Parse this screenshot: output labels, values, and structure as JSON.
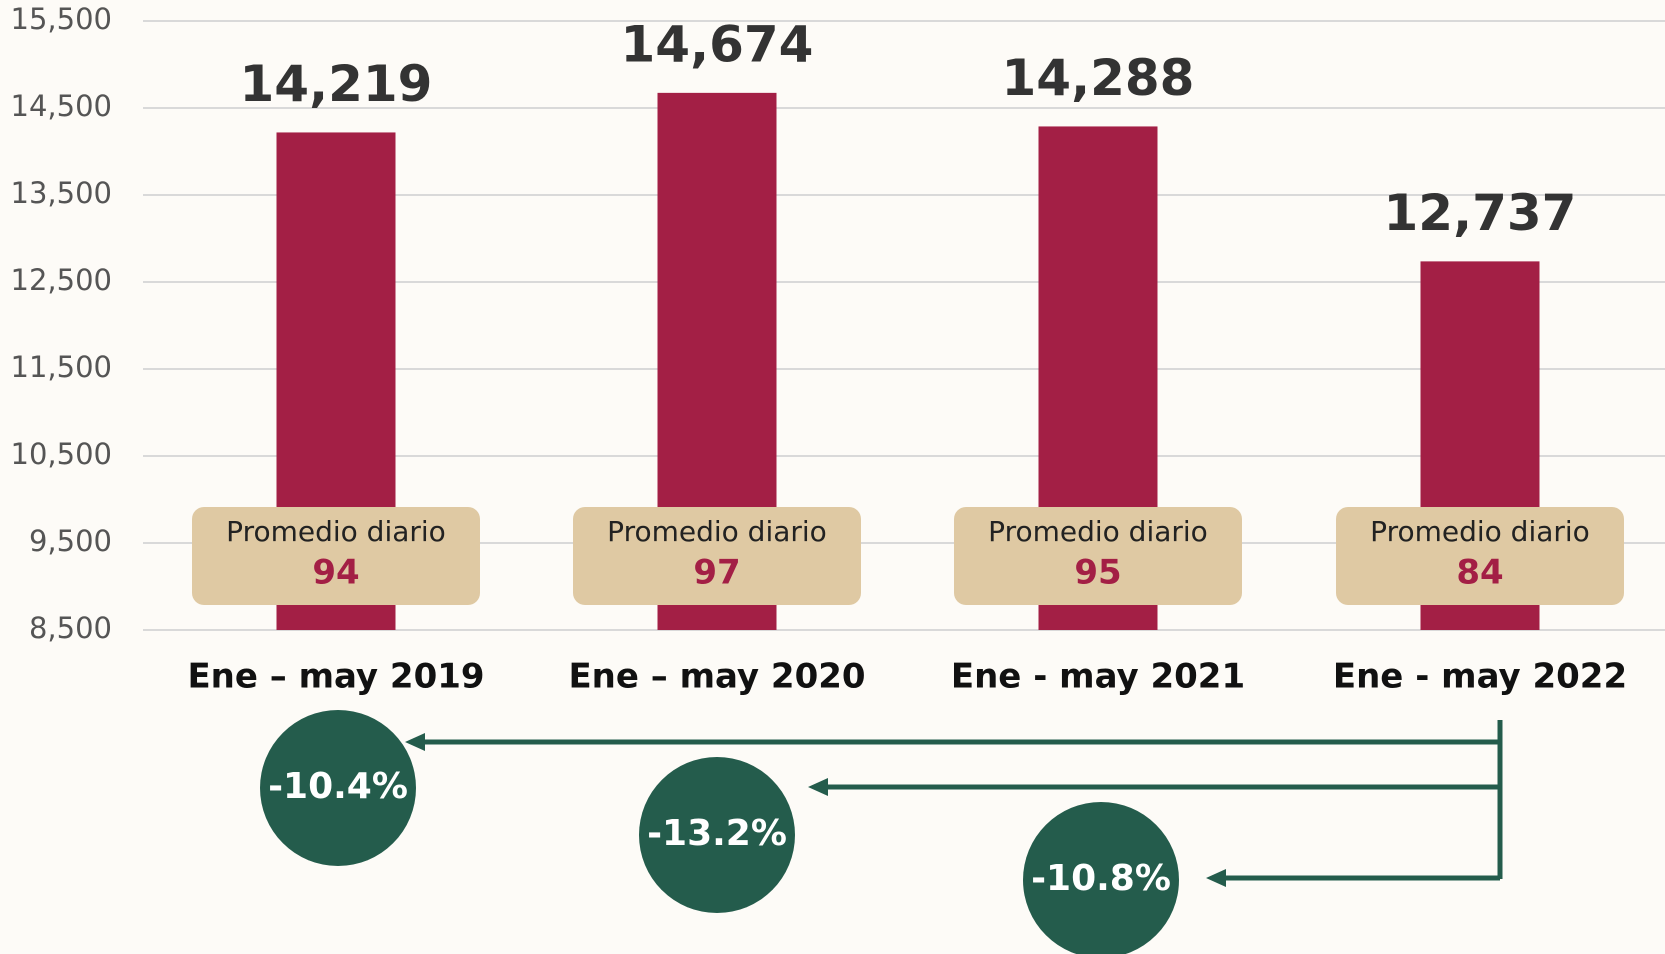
{
  "chart_data": {
    "type": "bar",
    "categories": [
      "Ene – may 2019",
      "Ene – may 2020",
      "Ene - may 2021",
      "Ene - may 2022"
    ],
    "values": [
      14219,
      14674,
      14288,
      12737
    ],
    "value_labels": [
      "14,219",
      "14,674",
      "14,288",
      "12,737"
    ],
    "color": "#a31f45",
    "ylim": [
      8500,
      15500
    ],
    "yticks": [
      {
        "value": 8500,
        "label": "8,500"
      },
      {
        "value": 9500,
        "label": "9,500"
      },
      {
        "value": 10500,
        "label": "10,500"
      },
      {
        "value": 11500,
        "label": "11,500"
      },
      {
        "value": 12500,
        "label": "12,500"
      },
      {
        "value": 13500,
        "label": "13,500"
      },
      {
        "value": 14500,
        "label": "14,500"
      },
      {
        "value": 15500,
        "label": "15,500"
      }
    ],
    "grid": true,
    "daily_average": {
      "label": "Promedio diario",
      "values": [
        "94",
        "97",
        "95",
        "84"
      ]
    },
    "changes": [
      "-10.4%",
      "-13.2%",
      "-10.8%"
    ]
  }
}
